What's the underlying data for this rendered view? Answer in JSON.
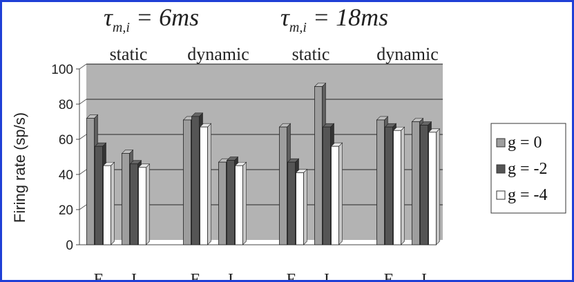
{
  "chart_data": {
    "type": "bar",
    "ylabel": "Firing rate (sp/s)",
    "ylim": [
      0,
      100
    ],
    "yticks": [
      "0",
      "20",
      "40",
      "60",
      "80",
      "100"
    ],
    "grid": true,
    "legend_position": "right",
    "panel_titles": [
      {
        "symbol": "τ",
        "subscript": "m,i",
        "rest": " = 6ms"
      },
      {
        "symbol": "τ",
        "subscript": "m,i",
        "rest": " = 18ms"
      }
    ],
    "condition_labels": [
      "static",
      "dynamic",
      "static",
      "dynamic"
    ],
    "categories": [
      "E",
      "I",
      "E",
      "I",
      "E",
      "I",
      "E",
      "I"
    ],
    "series": [
      {
        "name": "g = 0",
        "color": "#9e9e9e",
        "values": [
          72,
          52,
          71,
          47,
          67,
          90,
          71,
          70
        ]
      },
      {
        "name": "g = -2",
        "color": "#555555",
        "values": [
          56,
          46,
          73,
          48,
          47,
          67,
          67,
          68
        ]
      },
      {
        "name": "g = -4",
        "color": "#ffffff",
        "values": [
          45,
          44,
          67,
          45,
          41,
          56,
          65,
          64
        ]
      }
    ]
  },
  "colors": {
    "plot_background": "#b3b3b3",
    "frame_border": "#1f3fd6"
  }
}
